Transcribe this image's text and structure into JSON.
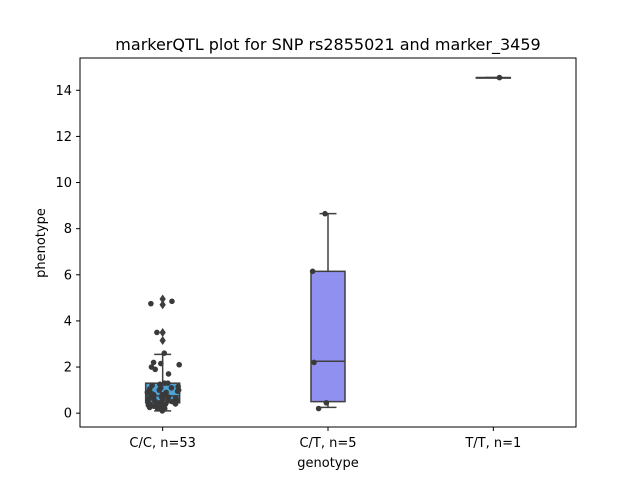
{
  "chart_data": {
    "type": "box",
    "title": "markerQTL plot for SNP rs2855021 and marker_3459",
    "xlabel": "genotype",
    "ylabel": "phenotype",
    "ylim": [
      -0.6,
      15.4
    ],
    "yticks": [
      0,
      2,
      4,
      6,
      8,
      10,
      12,
      14
    ],
    "grid": false,
    "categories": [
      "C/C, n=53",
      "C/T, n=5",
      "T/T, n=1"
    ],
    "colors": [
      "#4ba3d6",
      "#9090f0",
      "#8a8a8a"
    ],
    "boxes": [
      {
        "q1": 0.45,
        "median": 0.75,
        "q3": 1.3,
        "whisker_low": 0.1,
        "whisker_high": 2.55,
        "outliers": [
          3.15,
          3.5,
          4.7,
          4.95
        ]
      },
      {
        "q1": 0.5,
        "median": 2.25,
        "q3": 6.15,
        "whisker_low": 0.25,
        "whisker_high": 8.65,
        "outliers": []
      },
      {
        "q1": 14.55,
        "median": 14.55,
        "q3": 14.55,
        "whisker_low": 14.55,
        "whisker_high": 14.55,
        "outliers": []
      }
    ],
    "points": [
      [
        0.1,
        0.2,
        0.25,
        0.3,
        0.3,
        0.35,
        0.35,
        0.4,
        0.4,
        0.45,
        0.5,
        0.5,
        0.55,
        0.6,
        0.6,
        0.65,
        0.7,
        0.7,
        0.75,
        0.8,
        0.85,
        0.9,
        0.95,
        1.0,
        1.05,
        1.1,
        1.15,
        1.2,
        1.25,
        1.3,
        1.7,
        1.9,
        2.0,
        2.1,
        2.15,
        2.2,
        2.6,
        3.5,
        4.75,
        4.85,
        0.2,
        0.3,
        0.45,
        0.55,
        0.6,
        0.65,
        0.7,
        0.8,
        0.9,
        1.0,
        1.1,
        1.3,
        0.35
      ],
      [
        0.2,
        0.45,
        2.2,
        6.15,
        8.65
      ],
      [
        14.55
      ]
    ],
    "point_color": "#3a3a3a"
  }
}
